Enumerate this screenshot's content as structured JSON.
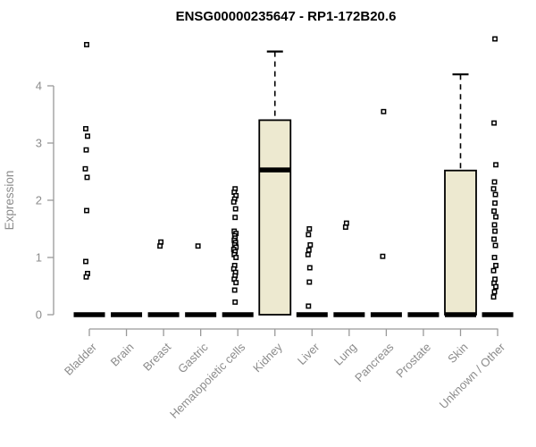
{
  "chart_data": {
    "type": "boxplot",
    "title": "ENSG00000235647 - RP1-172B20.6",
    "ylabel": "Expression",
    "ylim": [
      0,
      4.85
    ],
    "yticks": [
      0,
      1,
      2,
      3,
      4
    ],
    "grid": false,
    "legend": "none",
    "categories": [
      "Bladder",
      "Brain",
      "Breast",
      "Gastric",
      "Hematopoietic cells",
      "Kidney",
      "Liver",
      "Lung",
      "Pancreas",
      "Prostate",
      "Skin",
      "Unknown / Other"
    ],
    "colors": {
      "box_fill": "#ede9d0",
      "box_stroke": "#000000",
      "median": "#000000",
      "axis": "#999999",
      "axis_text": "#8c8c8c",
      "title_text": "#000000",
      "point_stroke": "#000000",
      "point_fill": "#ffffff",
      "background": "#ffffff"
    },
    "series": [
      {
        "category": "Bladder",
        "median": 0,
        "q1": 0,
        "q3": 0,
        "whisker_high": 0,
        "points": [
          4.72,
          3.25,
          3.12,
          2.88,
          2.55,
          2.4,
          1.82,
          0.93,
          0.72,
          0.66
        ]
      },
      {
        "category": "Brain",
        "median": 0,
        "q1": 0,
        "q3": 0,
        "whisker_high": 0,
        "points": []
      },
      {
        "category": "Breast",
        "median": 0,
        "q1": 0,
        "q3": 0,
        "whisker_high": 0,
        "points": [
          1.27,
          1.2
        ]
      },
      {
        "category": "Gastric",
        "median": 0,
        "q1": 0,
        "q3": 0,
        "whisker_high": 0,
        "points": [
          1.2
        ]
      },
      {
        "category": "Hematopoietic cells",
        "median": 0,
        "q1": 0,
        "q3": 0,
        "whisker_high": 0,
        "points": [
          2.2,
          2.14,
          2.08,
          2.02,
          1.97,
          1.85,
          1.7,
          1.46,
          1.42,
          1.38,
          1.34,
          1.3,
          1.26,
          1.22,
          1.18,
          1.14,
          1.1,
          1.05,
          1.0,
          0.86,
          0.8,
          0.74,
          0.68,
          0.62,
          0.56,
          0.43,
          0.22
        ]
      },
      {
        "category": "Kidney",
        "median": 2.53,
        "q1": 0,
        "q3": 3.4,
        "whisker_high": 4.6,
        "points": []
      },
      {
        "category": "Liver",
        "median": 0,
        "q1": 0,
        "q3": 0,
        "whisker_high": 0,
        "points": [
          1.5,
          1.4,
          1.22,
          1.13,
          1.05,
          0.82,
          0.57,
          0.15
        ]
      },
      {
        "category": "Lung",
        "median": 0,
        "q1": 0,
        "q3": 0,
        "whisker_high": 0,
        "points": [
          1.6,
          1.53
        ]
      },
      {
        "category": "Pancreas",
        "median": 0,
        "q1": 0,
        "q3": 0,
        "whisker_high": 0,
        "points": [
          3.55,
          1.02
        ]
      },
      {
        "category": "Prostate",
        "median": 0,
        "q1": 0,
        "q3": 0,
        "whisker_high": 0,
        "points": []
      },
      {
        "category": "Skin",
        "median": 0,
        "q1": 0,
        "q3": 2.52,
        "whisker_high": 4.2,
        "points": []
      },
      {
        "category": "Unknown / Other",
        "median": 0,
        "q1": 0,
        "q3": 0,
        "whisker_high": 0,
        "points": [
          4.82,
          3.35,
          2.62,
          2.32,
          2.2,
          2.1,
          1.95,
          1.81,
          1.71,
          1.57,
          1.46,
          1.32,
          1.21,
          1.0,
          0.86,
          0.77,
          0.62,
          0.55,
          0.49,
          0.4,
          0.31
        ]
      }
    ]
  }
}
